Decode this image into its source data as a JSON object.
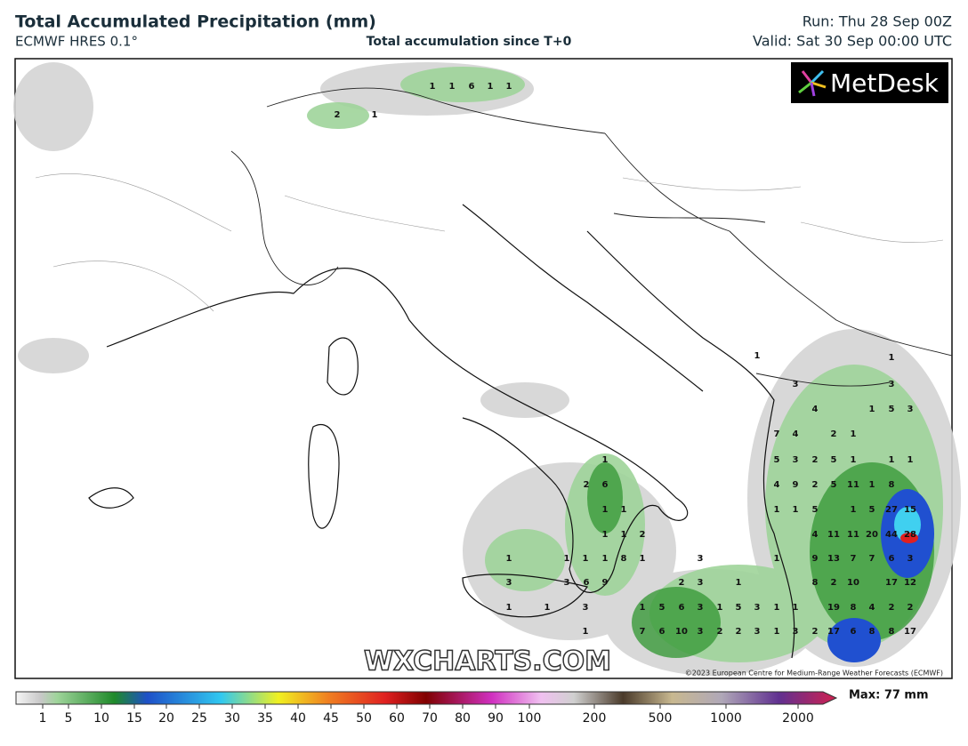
{
  "header": {
    "title": "Total Accumulated Precipitation (mm)",
    "model": "ECMWF HRES 0.1°",
    "subtitle": "Total accumulation since T+0",
    "run": "Run: Thu 28 Sep 00Z",
    "valid": "Valid: Sat 30 Sep 00:00 UTC"
  },
  "logo": "MetDesk",
  "watermark": "WXCHARTS.COM",
  "copyright": "©2023 European Centre for Medium-Range Weather Forecasts (ECMWF)",
  "colorbar": {
    "ticks": [
      1,
      5,
      10,
      15,
      20,
      25,
      30,
      35,
      40,
      45,
      50,
      60,
      70,
      80,
      90,
      100,
      200,
      500,
      1000,
      2000
    ],
    "max": "Max: 77 mm"
  },
  "map_labels": [
    1,
    1,
    6,
    1,
    1,
    2,
    1,
    1,
    2,
    6,
    1,
    1,
    1,
    1,
    2,
    1,
    1,
    1,
    1,
    8,
    1,
    3,
    3,
    3,
    6,
    9,
    2,
    3,
    1,
    1,
    1,
    3,
    1,
    5,
    6,
    3,
    1,
    5,
    3,
    1,
    1,
    1,
    7,
    6,
    10,
    3,
    2,
    2,
    3,
    1,
    3,
    2,
    17,
    6,
    8,
    8,
    17,
    1,
    1,
    3,
    3,
    4,
    1,
    5,
    3,
    7,
    4,
    2,
    1,
    5,
    3,
    2,
    5,
    1,
    1,
    1,
    4,
    9,
    2,
    5,
    11,
    1,
    8,
    1,
    1,
    5,
    1,
    5,
    27,
    15,
    4,
    11,
    11,
    20,
    44,
    28,
    1,
    9,
    13,
    7,
    7,
    6,
    3,
    8,
    2,
    10,
    17,
    12,
    19,
    8,
    4,
    2,
    2
  ]
}
